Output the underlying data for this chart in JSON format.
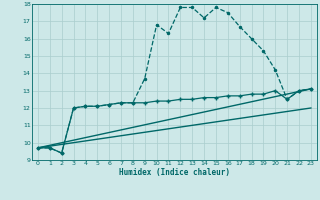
{
  "title": "",
  "xlabel": "Humidex (Indice chaleur)",
  "ylabel": "",
  "xlim": [
    -0.5,
    23.5
  ],
  "ylim": [
    9,
    18
  ],
  "yticks": [
    9,
    10,
    11,
    12,
    13,
    14,
    15,
    16,
    17,
    18
  ],
  "xticks": [
    0,
    1,
    2,
    3,
    4,
    5,
    6,
    7,
    8,
    9,
    10,
    11,
    12,
    13,
    14,
    15,
    16,
    17,
    18,
    19,
    20,
    21,
    22,
    23
  ],
  "bg_color": "#cde8e8",
  "grid_color": "#aacece",
  "line_color": "#006868",
  "series": [
    {
      "x": [
        0,
        1,
        2,
        3,
        4,
        5,
        6,
        7,
        8,
        9,
        10,
        11,
        12,
        13,
        14,
        15,
        16,
        17,
        18,
        19,
        20,
        21,
        22,
        23
      ],
      "y": [
        9.7,
        9.7,
        9.4,
        12.0,
        12.1,
        12.1,
        12.2,
        12.3,
        12.3,
        13.7,
        16.8,
        16.3,
        17.8,
        17.8,
        17.2,
        17.8,
        17.5,
        16.7,
        16.0,
        15.3,
        14.2,
        12.5,
        13.0,
        13.1
      ],
      "marker": ".",
      "markersize": 3,
      "linewidth": 0.9,
      "linestyle": "--"
    },
    {
      "x": [
        0,
        1,
        2,
        3,
        4,
        5,
        6,
        7,
        8,
        9,
        10,
        11,
        12,
        13,
        14,
        15,
        16,
        17,
        18,
        19,
        20,
        21,
        22,
        23
      ],
      "y": [
        9.7,
        9.7,
        9.4,
        12.0,
        12.1,
        12.1,
        12.2,
        12.3,
        12.3,
        12.3,
        12.4,
        12.4,
        12.5,
        12.5,
        12.6,
        12.6,
        12.7,
        12.7,
        12.8,
        12.8,
        13.0,
        12.5,
        13.0,
        13.1
      ],
      "marker": "+",
      "markersize": 3.5,
      "linewidth": 0.9,
      "linestyle": "-"
    },
    {
      "x": [
        0,
        23
      ],
      "y": [
        9.7,
        13.1
      ],
      "marker": null,
      "markersize": 0,
      "linewidth": 1.0,
      "linestyle": "-"
    },
    {
      "x": [
        0,
        23
      ],
      "y": [
        9.7,
        12.0
      ],
      "marker": null,
      "markersize": 0,
      "linewidth": 1.0,
      "linestyle": "-"
    }
  ]
}
